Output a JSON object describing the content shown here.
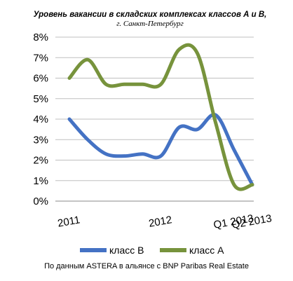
{
  "chart_data": {
    "type": "line",
    "title": "Уровень вакансии в складских комплексах классов А и В,",
    "subtitle": "г. Санкт-Петербург",
    "y_ticks": [
      "0%",
      "1%",
      "2%",
      "3%",
      "4%",
      "5%",
      "6%",
      "7%",
      "8%"
    ],
    "ylim": [
      0,
      8
    ],
    "x_labels": [
      {
        "text": "2011",
        "x": 0
      },
      {
        "text": "2012",
        "x": 5
      },
      {
        "text": "Q1 2013",
        "x": 9
      },
      {
        "text": "Q2 2013",
        "x": 10
      }
    ],
    "x": [
      0,
      1,
      2,
      3,
      4,
      5,
      6,
      7,
      8,
      9,
      10
    ],
    "xlim": [
      0,
      10
    ],
    "grid": true,
    "legend_position": "bottom",
    "series": [
      {
        "name": "класс В",
        "color": "#4472C4",
        "values": [
          4.0,
          3.0,
          2.3,
          2.2,
          2.3,
          2.2,
          3.6,
          3.5,
          4.2,
          2.5,
          0.8
        ]
      },
      {
        "name": "класс А",
        "color": "#77933C",
        "values": [
          6.0,
          6.9,
          5.7,
          5.7,
          5.7,
          5.7,
          7.4,
          7.2,
          3.8,
          0.8,
          0.8
        ]
      }
    ],
    "source": "По данным ASTERA в альянсе с BNP Paribas Real Estate"
  }
}
